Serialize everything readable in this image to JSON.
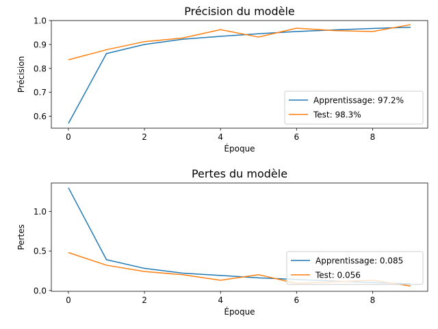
{
  "chart_data": [
    {
      "type": "line",
      "title": "Précision du modèle",
      "xlabel": "Époque",
      "ylabel": "Précision",
      "xlim": [
        -0.45,
        9.45
      ],
      "ylim": [
        0.55,
        1.0
      ],
      "xticks": [
        0,
        2,
        4,
        6,
        8
      ],
      "xtick_labels": [
        "0",
        "2",
        "4",
        "6",
        "8"
      ],
      "yticks": [
        0.6,
        0.7,
        0.8,
        0.9,
        1.0
      ],
      "ytick_labels": [
        "0.6",
        "0.7",
        "0.8",
        "0.9",
        "1.0"
      ],
      "legend_position": "lower-right",
      "grid": false,
      "x": [
        0,
        1,
        2,
        3,
        4,
        5,
        6,
        7,
        8,
        9
      ],
      "series": [
        {
          "name": "Apprentissage: 97.2%",
          "color": "#1f77b4",
          "values": [
            0.57,
            0.862,
            0.9,
            0.922,
            0.934,
            0.945,
            0.954,
            0.961,
            0.967,
            0.972
          ]
        },
        {
          "name": "Test: 98.3%",
          "color": "#ff7f0e",
          "values": [
            0.836,
            0.878,
            0.912,
            0.927,
            0.962,
            0.931,
            0.968,
            0.958,
            0.954,
            0.983
          ]
        }
      ]
    },
    {
      "type": "line",
      "title": "Pertes du modèle",
      "xlabel": "Époque",
      "ylabel": "Pertes",
      "xlim": [
        -0.45,
        9.45
      ],
      "ylim": [
        -0.01,
        1.36
      ],
      "xticks": [
        0,
        2,
        4,
        6,
        8
      ],
      "xtick_labels": [
        "0",
        "2",
        "4",
        "6",
        "8"
      ],
      "yticks": [
        0.0,
        0.5,
        1.0
      ],
      "ytick_labels": [
        "0.0",
        "0.5",
        "1.0"
      ],
      "legend_position": "lower-right",
      "grid": false,
      "x": [
        0,
        1,
        2,
        3,
        4,
        5,
        6,
        7,
        8,
        9
      ],
      "series": [
        {
          "name": "Apprentissage: 0.085",
          "color": "#1f77b4",
          "values": [
            1.3,
            0.39,
            0.28,
            0.22,
            0.19,
            0.16,
            0.14,
            0.12,
            0.1,
            0.085
          ]
        },
        {
          "name": "Test: 0.056",
          "color": "#ff7f0e",
          "values": [
            0.48,
            0.32,
            0.24,
            0.2,
            0.13,
            0.2,
            0.09,
            0.11,
            0.13,
            0.056
          ]
        }
      ]
    }
  ]
}
